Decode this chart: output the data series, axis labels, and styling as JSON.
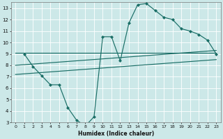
{
  "bg_color": "#cce8e8",
  "grid_color": "#ffffff",
  "line_color": "#1a6e66",
  "marker_color": "#1a6e66",
  "xlabel": "Humidex (Indice chaleur)",
  "xlim": [
    -0.5,
    23.5
  ],
  "ylim": [
    3,
    13.5
  ],
  "xticks": [
    0,
    1,
    2,
    3,
    4,
    5,
    6,
    7,
    8,
    9,
    10,
    11,
    12,
    13,
    14,
    15,
    16,
    17,
    18,
    19,
    20,
    21,
    22,
    23
  ],
  "yticks": [
    3,
    4,
    5,
    6,
    7,
    8,
    9,
    10,
    11,
    12,
    13
  ],
  "line1_x": [
    1,
    2,
    3,
    4,
    5,
    6,
    7,
    8,
    9,
    10,
    11,
    12,
    13,
    14,
    15,
    16,
    17,
    18,
    19,
    20,
    21,
    22,
    23
  ],
  "line1_y": [
    9.0,
    7.9,
    7.1,
    6.3,
    6.3,
    4.3,
    3.2,
    2.7,
    3.5,
    10.5,
    10.5,
    8.4,
    11.7,
    13.3,
    13.4,
    12.8,
    12.2,
    12.0,
    11.2,
    11.0,
    10.7,
    10.2,
    9.0
  ],
  "line2_x": [
    0,
    23
  ],
  "line2_y": [
    9.1,
    9.1
  ],
  "line3_x": [
    0,
    23
  ],
  "line3_y": [
    8.0,
    9.3
  ],
  "line4_x": [
    0,
    23
  ],
  "line4_y": [
    7.2,
    8.5
  ]
}
